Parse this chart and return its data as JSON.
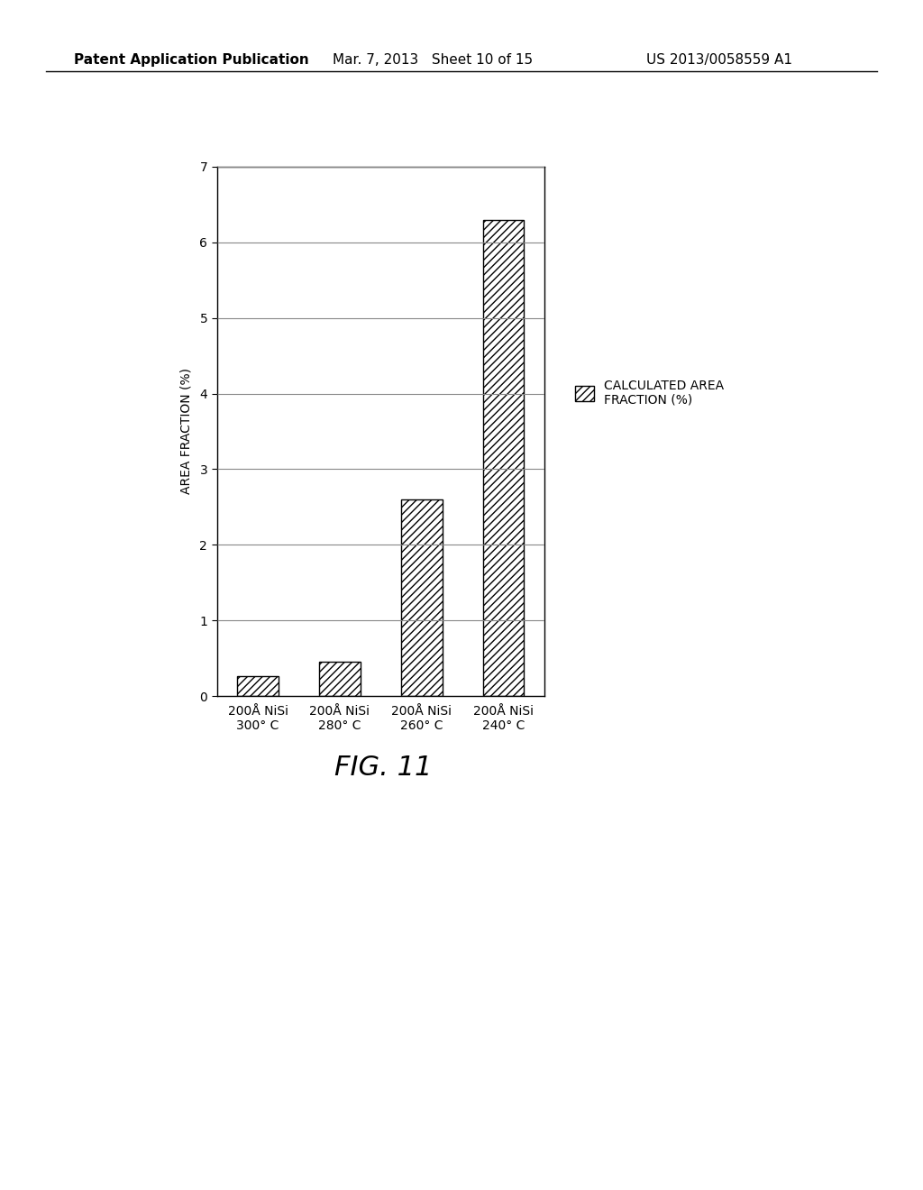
{
  "categories": [
    "200Å NiSi\n300° C",
    "200Å NiSi\n280° C",
    "200Å NiSi\n260° C",
    "200Å NiSi\n240° C"
  ],
  "values": [
    0.27,
    0.45,
    2.6,
    6.3
  ],
  "bar_color": "#ffffff",
  "bar_edgecolor": "#000000",
  "hatch": "////",
  "ylabel": "AREA FRACTION (%)",
  "ylim": [
    0,
    7
  ],
  "yticks": [
    0,
    1,
    2,
    3,
    4,
    5,
    6,
    7
  ],
  "legend_label": "CALCULATED AREA\nFRACTION (%)",
  "fig_label": "FIG. 11",
  "header_left": "Patent Application Publication",
  "header_center": "Mar. 7, 2013   Sheet 10 of 15",
  "header_right": "US 2013/0058559 A1",
  "background_color": "#ffffff",
  "bar_width": 0.5,
  "grid_color": "#888888",
  "axis_fontsize": 10,
  "tick_fontsize": 10,
  "header_fontsize": 11,
  "fig_label_fontsize": 22
}
